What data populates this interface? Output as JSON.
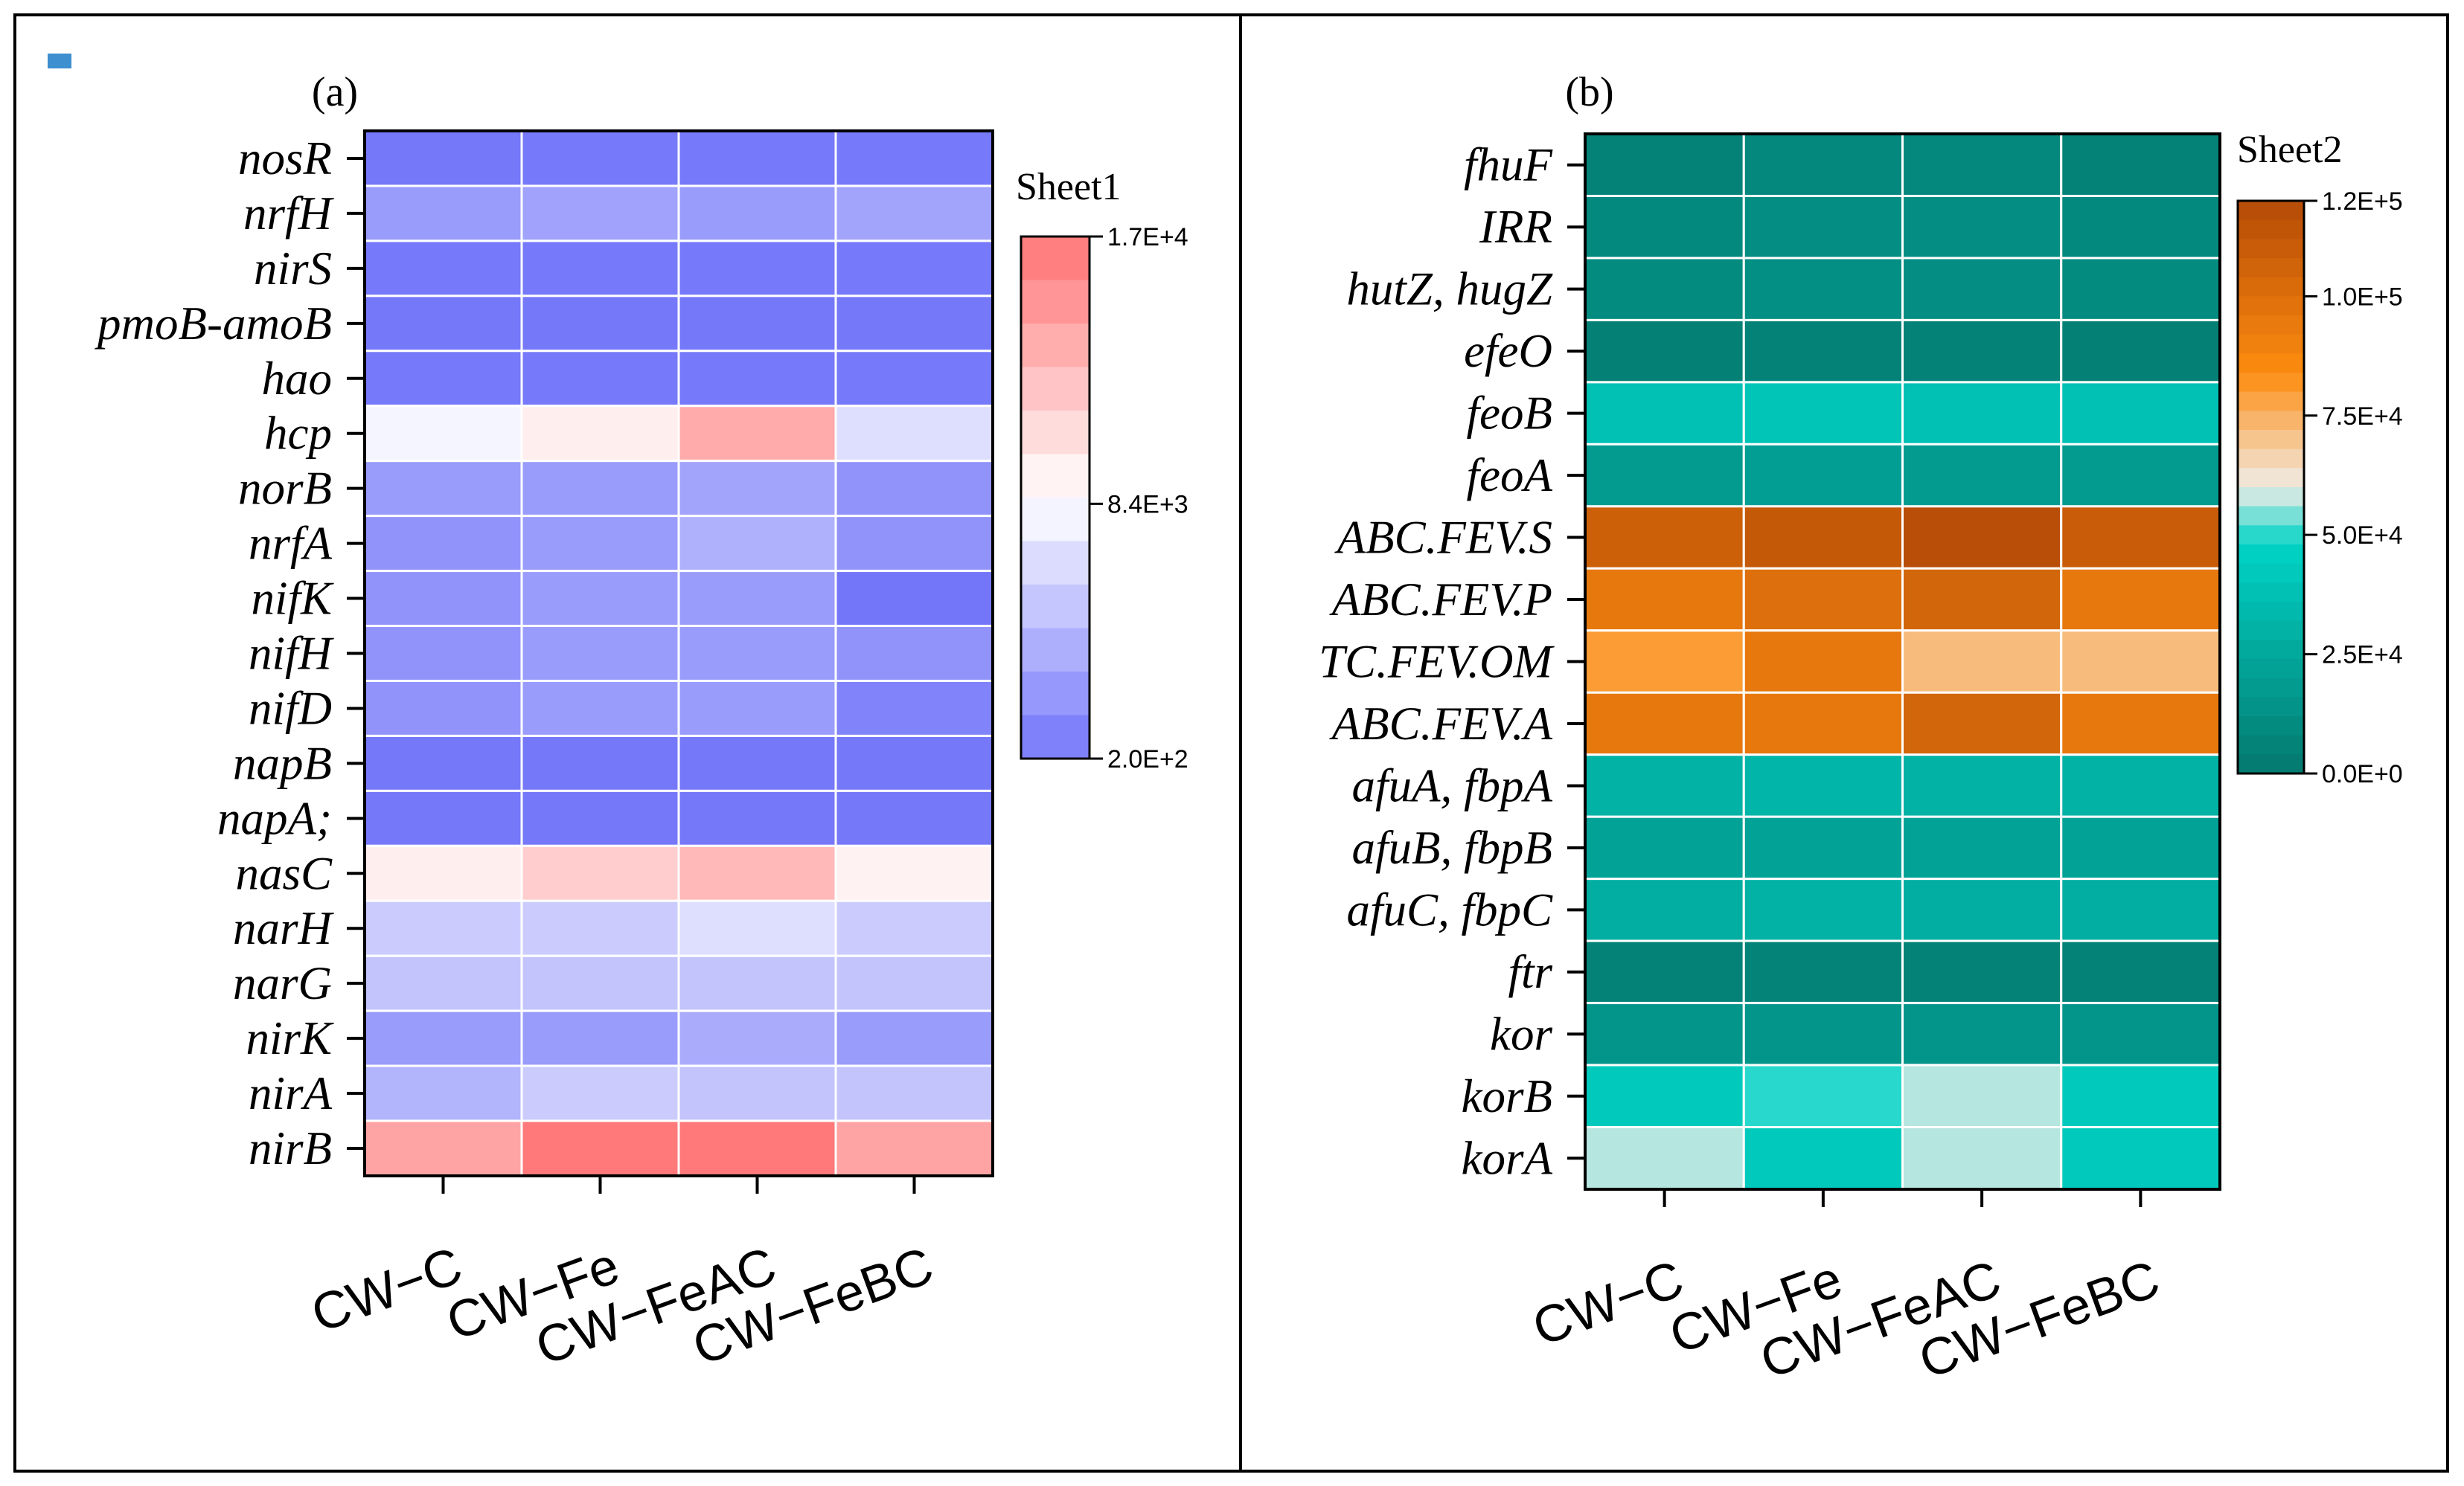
{
  "chart_data": [
    {
      "type": "heatmap",
      "title": "(a)",
      "legend_title": "Sheet1",
      "categories": [
        "CW−C",
        "CW−Fe",
        "CW−FeAC",
        "CW−FeBC"
      ],
      "genes": [
        "nosR",
        "nrfH",
        "nirS",
        "pmoB-amoB",
        "hao",
        "hcp",
        "norB",
        "nrfA",
        "nifK",
        "nifH",
        "nifD",
        "napB",
        "napA;",
        "nasC",
        "narH",
        "narG",
        "nirK",
        "nirA",
        "nirB"
      ],
      "values": [
        [
          300,
          400,
          400,
          400
        ],
        [
          2500,
          2900,
          2500,
          3000
        ],
        [
          400,
          400,
          400,
          400
        ],
        [
          300,
          300,
          300,
          300
        ],
        [
          400,
          400,
          400,
          400
        ],
        [
          8000,
          9600,
          13600,
          6600
        ],
        [
          2500,
          2500,
          3000,
          2000
        ],
        [
          2000,
          2500,
          3800,
          2000
        ],
        [
          2000,
          2500,
          2500,
          200
        ],
        [
          2000,
          2500,
          2500,
          2000
        ],
        [
          2000,
          2500,
          2500,
          1000
        ],
        [
          300,
          300,
          300,
          300
        ],
        [
          300,
          300,
          300,
          300
        ],
        [
          9600,
          11600,
          12800,
          9400
        ],
        [
          5500,
          5500,
          6600,
          5500
        ],
        [
          5000,
          5000,
          5000,
          5000
        ],
        [
          2500,
          2500,
          3500,
          2500
        ],
        [
          4000,
          5500,
          5000,
          5000
        ],
        [
          14000,
          16600,
          16600,
          14000
        ]
      ],
      "color_range": [
        200,
        17000
      ],
      "legend_ticks": [
        "1.7E+4",
        "8.4E+3",
        "2.0E+2"
      ],
      "colors": {
        "low": "#7376f9",
        "mid": "#ffffff",
        "high": "#ff7273"
      }
    },
    {
      "type": "heatmap",
      "title": "(b)",
      "legend_title": "Sheet2",
      "categories": [
        "CW−C",
        "CW−Fe",
        "CW−FeAC",
        "CW−FeBC"
      ],
      "genes": [
        "fhuF",
        "IRR",
        "hutZ, hugZ",
        "efeO",
        "feoB",
        "feoA",
        "ABC.FEV.S",
        "ABC.FEV.P",
        "TC.FEV.OM",
        "ABC.FEV.A",
        "afuA, fbpA",
        "afuB, fbpB",
        "afuC, fbpC",
        "ftr",
        "kor",
        "korB",
        "korA"
      ],
      "values": [
        [
          5000,
          8000,
          8000,
          5000
        ],
        [
          9000,
          11000,
          11000,
          9000
        ],
        [
          10000,
          12000,
          11000,
          10000
        ],
        [
          4000,
          5000,
          5000,
          4000
        ],
        [
          38000,
          40000,
          38000,
          38000
        ],
        [
          18000,
          20000,
          18000,
          18000
        ],
        [
          108000,
          112000,
          118000,
          110000
        ],
        [
          95000,
          100000,
          105000,
          95000
        ],
        [
          80000,
          95000,
          72000,
          72000
        ],
        [
          95000,
          95000,
          105000,
          95000
        ],
        [
          30000,
          32000,
          30000,
          30000
        ],
        [
          22000,
          22000,
          22000,
          22000
        ],
        [
          28000,
          30000,
          28000,
          28000
        ],
        [
          5000,
          6000,
          5000,
          5000
        ],
        [
          15000,
          15000,
          15000,
          15000
        ],
        [
          43000,
          50000,
          57000,
          43000
        ],
        [
          57000,
          43000,
          57000,
          43000
        ]
      ],
      "color_range": [
        0,
        120000
      ],
      "legend_ticks": [
        "1.2E+5",
        "1.0E+5",
        "7.5E+4",
        "5.0E+4",
        "2.5E+4",
        "0.0E+0"
      ],
      "colors": {
        "low": "#05786e",
        "mid_low": "#00d4c6",
        "mid": "#f1ece7",
        "mid_high": "#fd8c10",
        "high": "#b44a06"
      }
    }
  ]
}
